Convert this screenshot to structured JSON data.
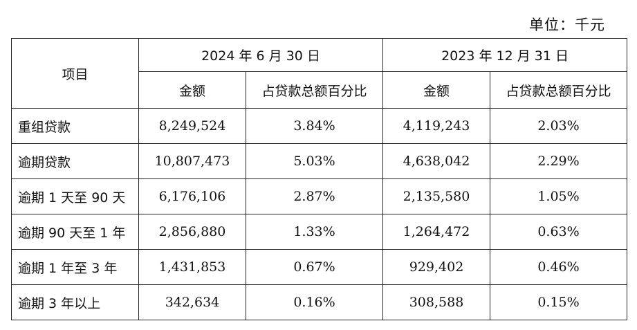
{
  "unit_label": "单位：千元",
  "header": {
    "item": "项目",
    "period1": "2024 年 6 月 30 日",
    "period2": "2023 年 12 月 31 日",
    "amount": "金额",
    "percent": "占贷款总额百分比"
  },
  "rows": [
    {
      "label": "重组贷款",
      "amt1": "8,249,524",
      "pct1": "3.84%",
      "amt2": "4,119,243",
      "pct2": "2.03%"
    },
    {
      "label": "逾期贷款",
      "amt1": "10,807,473",
      "pct1": "5.03%",
      "amt2": "4,638,042",
      "pct2": "2.29%"
    },
    {
      "label": "逾期 1 天至 90 天",
      "amt1": "6,176,106",
      "pct1": "2.87%",
      "amt2": "2,135,580",
      "pct2": "1.05%"
    },
    {
      "label": "逾期 90 天至 1 年",
      "amt1": "2,856,880",
      "pct1": "1.33%",
      "amt2": "1,264,472",
      "pct2": "0.63%"
    },
    {
      "label": "逾期 1 年至 3 年",
      "amt1": "1,431,853",
      "pct1": "0.67%",
      "amt2": "929,402",
      "pct2": "0.46%"
    },
    {
      "label": "逾期 3 年以上",
      "amt1": "342,634",
      "pct1": "0.16%",
      "amt2": "308,588",
      "pct2": "0.15%"
    }
  ]
}
